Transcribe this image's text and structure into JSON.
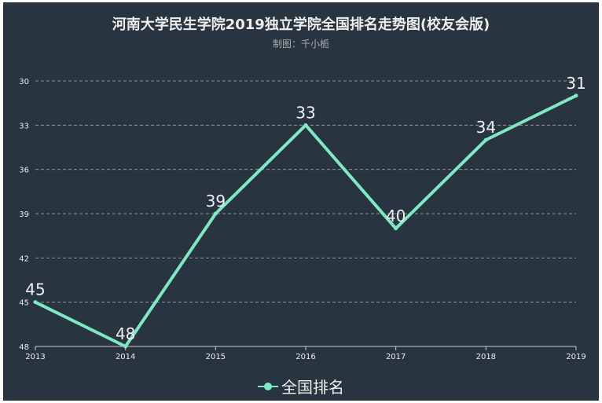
{
  "chart_data": {
    "type": "line",
    "title": "河南大学民生学院2019独立学院全国排名走势图(校友会版)",
    "subtitle": "制图：千小栀",
    "categories": [
      "2013",
      "2014",
      "2015",
      "2016",
      "2017",
      "2018",
      "2019"
    ],
    "series": [
      {
        "name": "全国排名",
        "values": [
          45,
          48,
          39,
          33,
          40,
          34,
          31
        ],
        "color": "#7ee8c3"
      }
    ],
    "y_axis": {
      "min": 30,
      "max": 48,
      "inverse": true,
      "ticks": [
        30,
        33,
        36,
        39,
        42,
        45,
        48
      ]
    },
    "xlabel": "",
    "ylabel": "",
    "grid": "horizontal-dashed",
    "legend_position": "bottom-center"
  },
  "colors": {
    "background": "#293441",
    "axis": "#cccccc",
    "gridline": "#aaaaaa",
    "text": "#eeeeee"
  }
}
